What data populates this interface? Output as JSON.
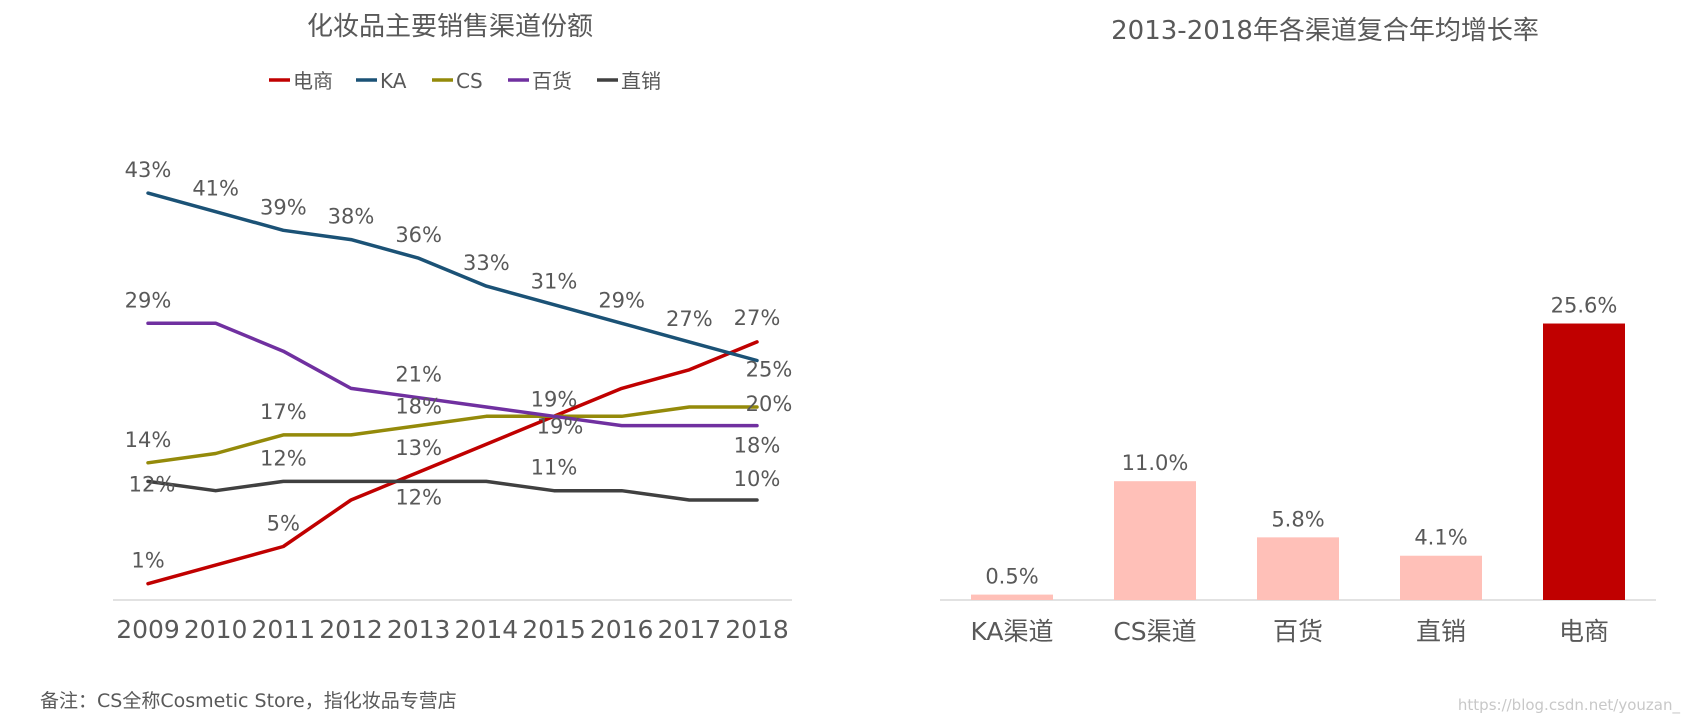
{
  "chart_data": [
    {
      "type": "line",
      "title": "化妆品主要销售渠道份额",
      "xlabel": "",
      "ylabel": "",
      "ylim": [
        0,
        45
      ],
      "grid": false,
      "legend_position": "top",
      "categories": [
        "2009",
        "2010",
        "2011",
        "2012",
        "2013",
        "2014",
        "2015",
        "2016",
        "2017",
        "2018"
      ],
      "series": [
        {
          "name": "电商",
          "color": "#c00000",
          "values": [
            1,
            3,
            5,
            10,
            13,
            16,
            19,
            22,
            24,
            27
          ],
          "labels": [
            "1%",
            "",
            "5%",
            "",
            "13%",
            "",
            "19%",
            "",
            "",
            "27%"
          ]
        },
        {
          "name": "KA",
          "color": "#1b5276",
          "values": [
            43,
            41,
            39,
            38,
            36,
            33,
            31,
            29,
            27,
            25
          ],
          "labels": [
            "43%",
            "41%",
            "39%",
            "38%",
            "36%",
            "33%",
            "31%",
            "29%",
            "27%",
            "25%"
          ]
        },
        {
          "name": "CS",
          "color": "#948a0a",
          "values": [
            14,
            15,
            17,
            17,
            18,
            19,
            19,
            19,
            20,
            20
          ],
          "labels": [
            "14%",
            "",
            "17%",
            "",
            "18%",
            "",
            "",
            "",
            "",
            "20%"
          ]
        },
        {
          "name": "百货",
          "color": "#7030a0",
          "values": [
            29,
            29,
            26,
            22,
            21,
            20,
            19,
            18,
            18,
            18
          ],
          "labels": [
            "29%",
            "",
            "",
            "",
            "21%",
            "",
            "19%",
            "",
            "",
            "18%"
          ]
        },
        {
          "name": "直销",
          "color": "#404040",
          "values": [
            12,
            11,
            12,
            12,
            12,
            12,
            11,
            11,
            10,
            10
          ],
          "labels": [
            "12%",
            "",
            "12%",
            "",
            "12%",
            "",
            "11%",
            "",
            "",
            "10%"
          ]
        }
      ]
    },
    {
      "type": "bar",
      "title": "2013-2018年各渠道复合年均增长率",
      "xlabel": "",
      "ylabel": "",
      "ylim": [
        0,
        30
      ],
      "grid": false,
      "categories": [
        "KA渠道",
        "CS渠道",
        "百货",
        "直销",
        "电商"
      ],
      "values": [
        0.5,
        11.0,
        5.8,
        4.1,
        25.6
      ],
      "labels": [
        "0.5%",
        "11.0%",
        "5.8%",
        "4.1%",
        "25.6%"
      ],
      "colors": [
        "#ffc0b8",
        "#ffc0b8",
        "#ffc0b8",
        "#ffc0b8",
        "#c00000"
      ]
    }
  ],
  "footnote": "备注：CS全称Cosmetic Store，指化妆品专营店",
  "watermark": "https://blog.csdn.net/youzan_"
}
